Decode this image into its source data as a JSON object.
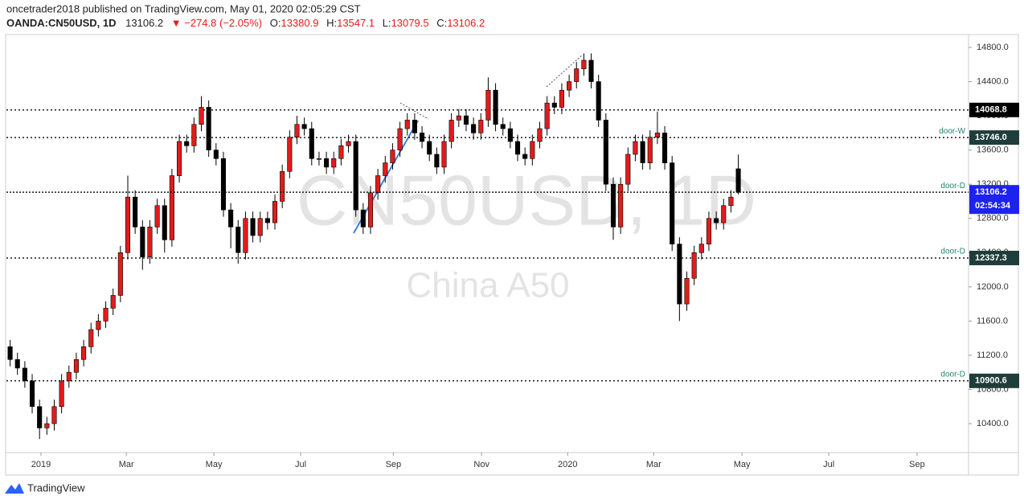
{
  "header": {
    "publisher": "oncetrader2018 published on TradingView.com, May 01, 2020 02:05:29 CST",
    "symbol": "OANDA:CN50USD, 1D",
    "change": "▼ −274.8 (−2.05%)",
    "o": "O:",
    "h": "H:",
    "l": "L:",
    "c": "C:"
  },
  "footer": {
    "brand": "TradingView"
  },
  "chart_data": {
    "type": "candlestick",
    "watermark": "CN50USD, 1D",
    "watermark_sub": "China A50",
    "categories": [
      null,
      null,
      null,
      null,
      null,
      null,
      null,
      null,
      null,
      null,
      null,
      null,
      null,
      null,
      null,
      null,
      null,
      null,
      null,
      null,
      null,
      null,
      null,
      null,
      null,
      null,
      null,
      null,
      null,
      null,
      null,
      null,
      null,
      null,
      null,
      null,
      null,
      null,
      null,
      null,
      null,
      null,
      null,
      null,
      null,
      null,
      null,
      null,
      null,
      null,
      null,
      null,
      null,
      null,
      null,
      null,
      null,
      null,
      null,
      null,
      null,
      null,
      null,
      null,
      null,
      null,
      null,
      null,
      null,
      null,
      null,
      null,
      null,
      null,
      null,
      null,
      null,
      null,
      null,
      null,
      null,
      null,
      null,
      null,
      null,
      null,
      null,
      null,
      null,
      null,
      null,
      null,
      null,
      null,
      null,
      null,
      null,
      null,
      null,
      null
    ],
    "series": [
      {
        "up_color": "#e31b1b",
        "down_color": "#000000",
        "open": [
          11300,
          11150,
          11050,
          10900,
          10600,
          10350,
          10400,
          10600,
          10900,
          11000,
          11150,
          11300,
          11500,
          11600,
          11750,
          11900,
          12400,
          13050,
          12700,
          12350,
          12700,
          12950,
          12550,
          13300,
          13700,
          13650,
          13900,
          14100,
          13600,
          13500,
          12900,
          12700,
          12400,
          12800,
          12600,
          12800,
          12750,
          13000,
          13350,
          13750,
          13900,
          13850,
          13500,
          13500,
          13400,
          13500,
          13650,
          13700,
          12900,
          12700,
          13100,
          13300,
          13450,
          13600,
          13850,
          13950,
          13800,
          13700,
          13550,
          13400,
          13700,
          13950,
          14000,
          13900,
          13800,
          13950,
          14300,
          13900,
          13850,
          13700,
          13550,
          13500,
          13700,
          13850,
          14150,
          14100,
          14300,
          14400,
          14550,
          14650,
          14400,
          13950,
          13200,
          12700,
          13200,
          13550,
          13700,
          13450,
          13750,
          13800,
          13450,
          12500,
          11800,
          12100,
          12400,
          12500,
          12800,
          12750,
          12950,
          13380.9
        ],
        "high": [
          11380,
          11230,
          11130,
          10980,
          10680,
          10480,
          10680,
          10980,
          11080,
          11230,
          11380,
          11580,
          11680,
          11830,
          11980,
          12480,
          13300,
          13130,
          12780,
          12780,
          13030,
          13030,
          13380,
          13780,
          13780,
          13980,
          14230,
          14180,
          13680,
          13580,
          12980,
          12780,
          12880,
          12880,
          12880,
          12880,
          13080,
          13430,
          13830,
          14000,
          13980,
          13930,
          13580,
          13580,
          13580,
          13730,
          13780,
          13780,
          12980,
          13180,
          13380,
          13530,
          13680,
          13930,
          14030,
          14030,
          13880,
          13780,
          13630,
          13780,
          14030,
          14080,
          14080,
          13980,
          14030,
          14450,
          14380,
          13980,
          13930,
          13780,
          13630,
          13780,
          13930,
          14230,
          14230,
          14380,
          14480,
          14630,
          14730,
          14730,
          14480,
          14030,
          13280,
          13280,
          13630,
          13780,
          13780,
          13830,
          14050,
          13880,
          13530,
          12580,
          12180,
          12480,
          12580,
          12880,
          12880,
          13030,
          13130,
          13547.1
        ],
        "low": [
          11070,
          10970,
          10820,
          10520,
          10220,
          10270,
          10320,
          10520,
          10820,
          10920,
          11070,
          11220,
          11420,
          11520,
          11670,
          11820,
          12320,
          12620,
          12200,
          12270,
          12620,
          12400,
          12470,
          13220,
          13570,
          13570,
          13820,
          13520,
          13420,
          12820,
          12450,
          12270,
          12320,
          12520,
          12520,
          12670,
          12670,
          12920,
          13270,
          13670,
          13770,
          13420,
          13420,
          13320,
          13320,
          13420,
          13570,
          12820,
          12620,
          12620,
          13020,
          13220,
          13370,
          13520,
          13770,
          13720,
          13620,
          13470,
          13320,
          13320,
          13620,
          13870,
          13820,
          13720,
          13720,
          13870,
          13820,
          13770,
          13620,
          13470,
          13420,
          13420,
          13620,
          13770,
          14020,
          14020,
          14220,
          14320,
          14470,
          14320,
          13870,
          13120,
          12550,
          12620,
          13120,
          13470,
          13370,
          13370,
          13670,
          13370,
          12420,
          11600,
          11720,
          12020,
          12320,
          12420,
          12670,
          12670,
          12870,
          13079.5
        ],
        "close": [
          11150,
          11050,
          10900,
          10600,
          10350,
          10400,
          10600,
          10900,
          11000,
          11150,
          11300,
          11500,
          11600,
          11750,
          11900,
          12400,
          13050,
          12700,
          12350,
          12700,
          12950,
          12550,
          13300,
          13700,
          13650,
          13900,
          14100,
          13600,
          13500,
          12900,
          12700,
          12400,
          12800,
          12600,
          12800,
          12750,
          13000,
          13350,
          13750,
          13900,
          13850,
          13500,
          13500,
          13400,
          13500,
          13650,
          13700,
          12900,
          12700,
          13100,
          13300,
          13450,
          13600,
          13850,
          13950,
          13800,
          13700,
          13550,
          13400,
          13700,
          13950,
          14000,
          13900,
          13800,
          13950,
          14300,
          13900,
          13850,
          13700,
          13550,
          13500,
          13700,
          13850,
          14150,
          14100,
          14300,
          14400,
          14550,
          14650,
          14400,
          13950,
          13200,
          12700,
          13200,
          13550,
          13700,
          13450,
          13750,
          13800,
          13450,
          12500,
          11800,
          12100,
          12400,
          12500,
          12800,
          12750,
          12950,
          13050,
          13106.2
        ]
      }
    ],
    "xlim": [
      -0.5,
      130.3
    ],
    "xticks": [
      {
        "value": 4.2,
        "label": "2019"
      },
      {
        "value": 15.8,
        "label": "Mar"
      },
      {
        "value": 27.7,
        "label": "May"
      },
      {
        "value": 39.5,
        "label": "Jul"
      },
      {
        "value": 52.1,
        "label": "Sep"
      },
      {
        "value": 64.1,
        "label": "Nov"
      },
      {
        "value": 75.8,
        "label": "2020"
      },
      {
        "value": 87.5,
        "label": "Mar"
      },
      {
        "value": 99.5,
        "label": "May"
      },
      {
        "value": 111.3,
        "label": "Jul"
      },
      {
        "value": 123.3,
        "label": "Sep"
      }
    ],
    "ylim": [
      10062,
      14941
    ],
    "yticks": [
      {
        "value": 10400,
        "label": "10400.0"
      },
      {
        "value": 10800,
        "label": "10800.0"
      },
      {
        "value": 11200,
        "label": "11200.0"
      },
      {
        "value": 11600,
        "label": "11600.0"
      },
      {
        "value": 12000,
        "label": "12000.0"
      },
      {
        "value": 12400,
        "label": "12400.0"
      },
      {
        "value": 12800,
        "label": "12800.0"
      },
      {
        "value": 13200,
        "label": "13200.0"
      },
      {
        "value": 13600,
        "label": "13600.0"
      },
      {
        "value": 14000,
        "label": "14000.0"
      },
      {
        "value": 14400,
        "label": "14400.0"
      },
      {
        "value": 14800,
        "label": "14800.0"
      }
    ],
    "levels": [
      {
        "price": 14068.8
      },
      {
        "price": {
          "value": 13746,
          "label": "13746.0"
        },
        "name": "door-W"
      },
      {
        "price": 12337.3,
        "name": "door-D"
      },
      {
        "price": 10900.6,
        "name": "door-D"
      }
    ],
    "current_level_name": "door-D",
    "countdown": "02:54:34"
  }
}
